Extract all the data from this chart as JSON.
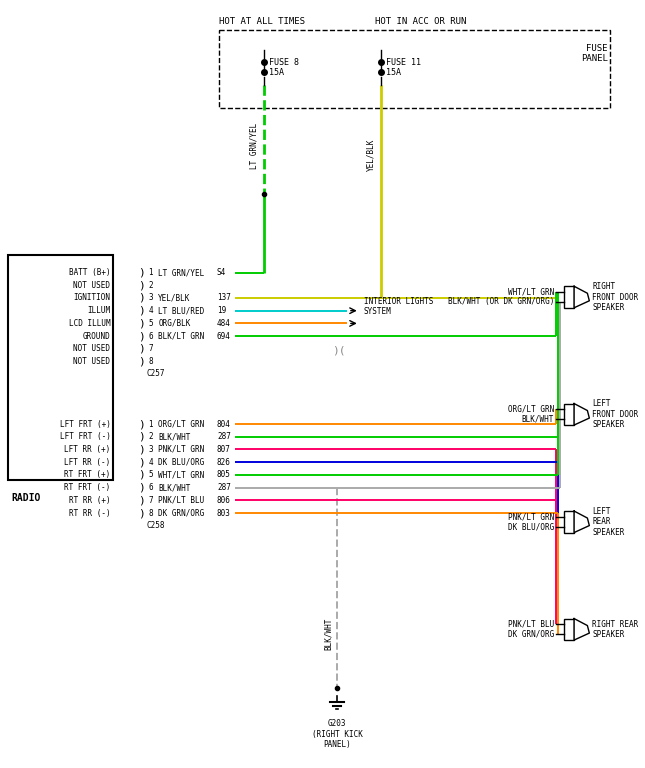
{
  "bg_color": "#ffffff",
  "hot_at_all_times": "HOT AT ALL TIMES",
  "hot_in_acc": "HOT IN ACC OR RUN",
  "fuse_box_label": "FUSE\nPANEL",
  "fuse8_label": "FUSE 8\n15A",
  "fuse11_label": "FUSE 11\n15A",
  "interior_lights": "INTERIOR LIGHTS\nSYSTEM",
  "ground_label": "G203\n(RIGHT KICK\nPANEL)",
  "connector1_name": "C257",
  "connector2_name": "C258",
  "radio_label": "RADIO",
  "conn1_rows": [
    {
      "num": "1",
      "label": "LT GRN/YEL",
      "code": "S4",
      "color": "#00cc00"
    },
    {
      "num": "2",
      "label": "",
      "code": "",
      "color": null
    },
    {
      "num": "3",
      "label": "YEL/BLK",
      "code": "137",
      "color": "#cccc00"
    },
    {
      "num": "4",
      "label": "LT BLU/RED",
      "code": "19",
      "color": "#00cccc"
    },
    {
      "num": "5",
      "label": "ORG/BLK",
      "code": "484",
      "color": "#ff8800"
    },
    {
      "num": "6",
      "label": "BLK/LT GRN",
      "code": "694",
      "color": "#00cc00"
    },
    {
      "num": "7",
      "label": "",
      "code": "",
      "color": null
    },
    {
      "num": "8",
      "label": "",
      "code": "",
      "color": null
    }
  ],
  "radio_labels1": [
    "BATT (B+)",
    "NOT USED",
    "IGNITION",
    "ILLUM",
    "LCD ILLUM",
    "GROUND",
    "NOT USED",
    "NOT USED"
  ],
  "conn2_rows": [
    {
      "num": "1",
      "label": "ORG/LT GRN",
      "code": "804",
      "color": "#ff8800"
    },
    {
      "num": "2",
      "label": "BLK/WHT",
      "code": "287",
      "color": "#00cc00"
    },
    {
      "num": "3",
      "label": "PNK/LT GRN",
      "code": "807",
      "color": "#ff0066"
    },
    {
      "num": "4",
      "label": "DK BLU/ORG",
      "code": "826",
      "color": "#0000dd"
    },
    {
      "num": "5",
      "label": "WHT/LT GRN",
      "code": "805",
      "color": "#00cc00"
    },
    {
      "num": "6",
      "label": "BLK/WHT",
      "code": "287",
      "color": "#aaaaaa"
    },
    {
      "num": "7",
      "label": "PNK/LT BLU",
      "code": "806",
      "color": "#ff0066"
    },
    {
      "num": "8",
      "label": "DK GRN/ORG",
      "code": "803",
      "color": "#ff8800"
    }
  ],
  "radio_labels2": [
    "LFT FRT (+)",
    "LFT FRT (-)",
    "LFT RR (+)",
    "LFT RR (-)",
    "RT FRT (+)",
    "RT FRT (-)",
    "RT RR (+)",
    "RT RR (-)"
  ],
  "spk_rf_top": "WHT/LT GRN",
  "spk_rf_bot": "BLK/WHT (OR DK GRN/ORG)",
  "spk_lf_top": "ORG/LT GRN",
  "spk_lf_bot": "BLK/WHT",
  "spk_lr_top": "PNK/LT GRN",
  "spk_lr_bot": "DK BLU/ORG",
  "spk_rr_top": "PNK/LT BLU",
  "spk_rr_bot": "DK GRN/ORG",
  "spk_rf_title": "RIGHT\nFRONT DOOR\nSPEAKER",
  "spk_lf_title": "LEFT\nFRONT DOOR\nSPEAKER",
  "spk_lr_title": "LEFT\nREAR\nSPEAKER",
  "spk_rr_title": "RIGHT REAR\nSPEAKER",
  "ltgrnyel_color": "#00cc00",
  "yelblk_color": "#cccc00",
  "blkwht_color": "#aaaaaa"
}
